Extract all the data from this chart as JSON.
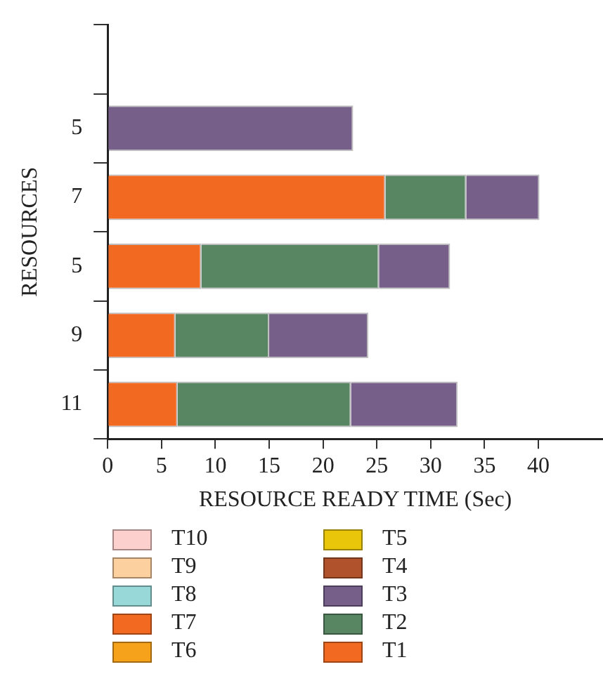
{
  "chart_data": {
    "type": "bar",
    "orientation": "horizontal",
    "stacked": true,
    "xlabel": "RESOURCE READY TIME (Sec)",
    "ylabel": "RESOURCES",
    "categories": [
      null,
      "5",
      "7",
      "5",
      "9",
      "11"
    ],
    "series": [
      {
        "name": "T1",
        "color": "#f26a22",
        "values": [
          null,
          null,
          25.8,
          8.7,
          6.3,
          6.5
        ]
      },
      {
        "name": "T2",
        "color": "#588663",
        "values": [
          null,
          null,
          7.5,
          16.5,
          8.7,
          16.1
        ]
      },
      {
        "name": "T3",
        "color": "#76608a",
        "values": [
          null,
          22.8,
          6.8,
          6.6,
          9.2,
          9.9
        ]
      },
      {
        "name": "T4",
        "color": "#b0532c",
        "values": [
          null,
          null,
          null,
          null,
          null,
          null
        ]
      },
      {
        "name": "T5",
        "color": "#e9c60a",
        "values": [
          null,
          null,
          null,
          null,
          null,
          null
        ]
      },
      {
        "name": "T6",
        "color": "#f7a21b",
        "values": [
          null,
          null,
          null,
          null,
          null,
          null
        ]
      },
      {
        "name": "T7",
        "color": "#f26a22",
        "values": [
          null,
          null,
          null,
          null,
          null,
          null
        ]
      },
      {
        "name": "T8",
        "color": "#98d8d8",
        "values": [
          null,
          null,
          null,
          null,
          null,
          null
        ]
      },
      {
        "name": "T9",
        "color": "#fdd0a0",
        "values": [
          null,
          null,
          null,
          null,
          null,
          null
        ]
      },
      {
        "name": "T10",
        "color": "#fcd0cc",
        "values": [
          null,
          null,
          null,
          null,
          null,
          null
        ]
      }
    ],
    "xlim": [
      0,
      46
    ],
    "xticks": [
      0,
      5,
      10,
      15,
      20,
      25,
      30,
      35,
      40
    ],
    "grid": false,
    "legend": "bottom"
  }
}
